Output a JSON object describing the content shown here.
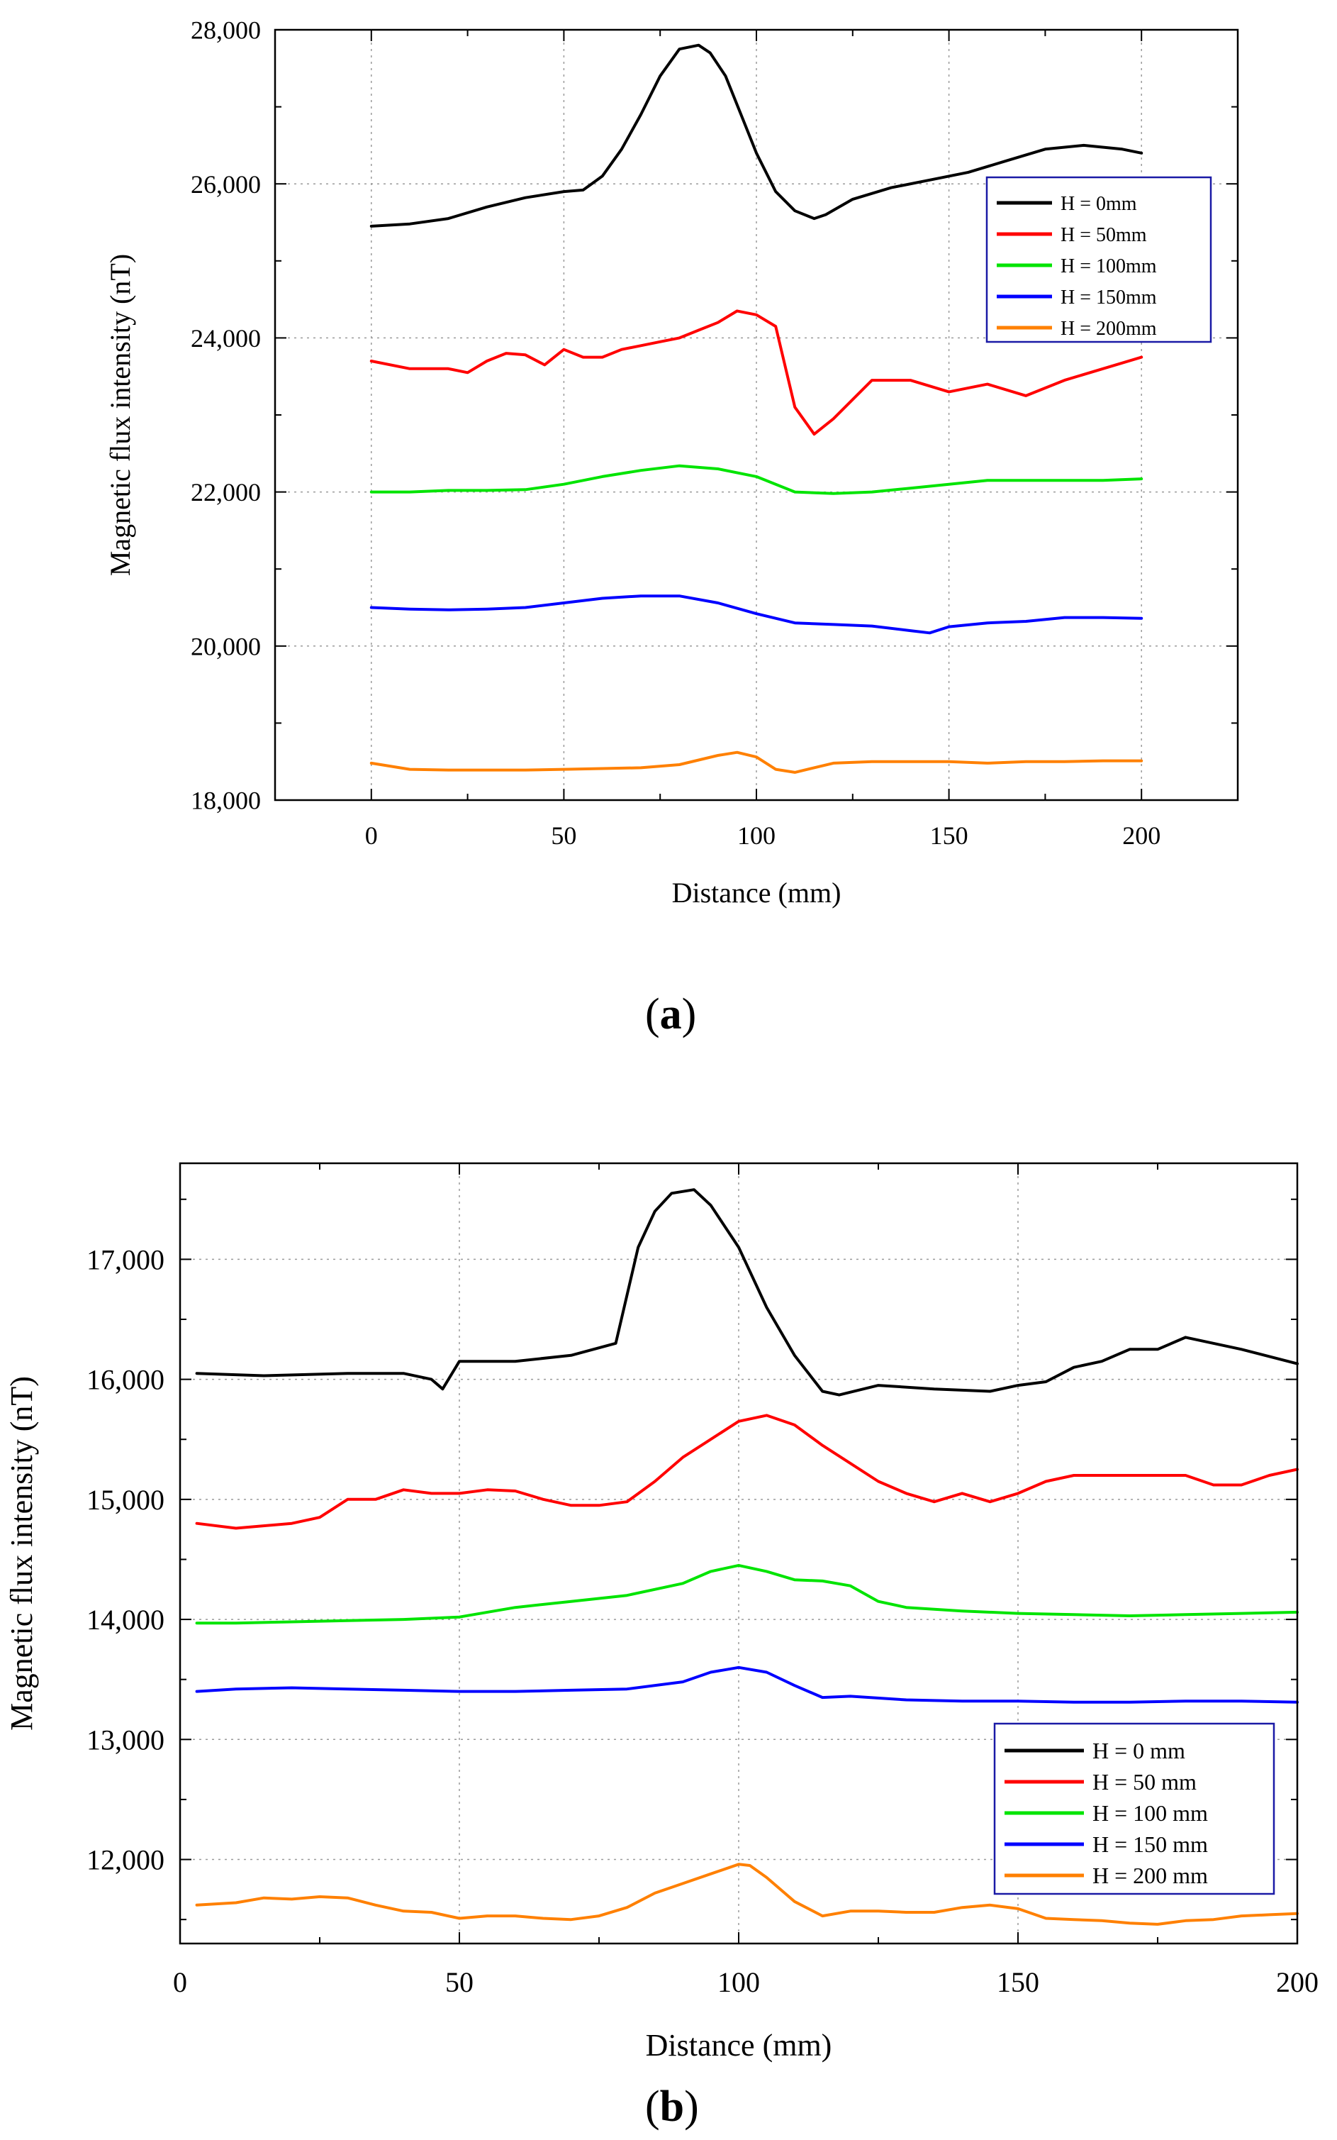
{
  "chart_data": [
    {
      "type": "line",
      "panel_label": "a",
      "xlabel": "Distance (mm)",
      "ylabel": "Magnetic flux intensity (nT)",
      "xlim": [
        -25,
        225
      ],
      "ylim": [
        18000,
        28000
      ],
      "xticks": [
        0,
        50,
        100,
        150,
        200
      ],
      "yticks": [
        18000,
        20000,
        22000,
        24000,
        26000,
        28000
      ],
      "xtick_labels": [
        "0",
        "50",
        "100",
        "150",
        "200"
      ],
      "ytick_labels": [
        "18,000",
        "20,000",
        "22,000",
        "24,000",
        "26,000",
        "28,000"
      ],
      "grid": true,
      "legend_position": "top-right",
      "series": [
        {
          "name": "H = 0mm",
          "color": "#000000",
          "x": [
            0,
            10,
            20,
            30,
            40,
            50,
            55,
            60,
            65,
            70,
            75,
            80,
            85,
            88,
            92,
            96,
            100,
            105,
            110,
            115,
            118,
            125,
            135,
            145,
            155,
            165,
            175,
            185,
            195,
            200
          ],
          "y": [
            25450,
            25480,
            25550,
            25700,
            25820,
            25900,
            25920,
            26100,
            26450,
            26900,
            27400,
            27750,
            27800,
            27700,
            27400,
            26900,
            26400,
            25900,
            25650,
            25550,
            25600,
            25800,
            25950,
            26050,
            26150,
            26300,
            26450,
            26500,
            26450,
            26400
          ]
        },
        {
          "name": "H = 50mm",
          "color": "#ff0000",
          "x": [
            0,
            10,
            20,
            25,
            30,
            35,
            40,
            45,
            50,
            55,
            60,
            65,
            70,
            75,
            80,
            85,
            90,
            95,
            100,
            105,
            110,
            115,
            120,
            130,
            140,
            150,
            160,
            170,
            180,
            190,
            200
          ],
          "y": [
            23700,
            23600,
            23600,
            23550,
            23700,
            23800,
            23780,
            23650,
            23850,
            23750,
            23750,
            23850,
            23900,
            23950,
            24000,
            24100,
            24200,
            24350,
            24300,
            24150,
            23100,
            22750,
            22950,
            23450,
            23450,
            23300,
            23400,
            23250,
            23450,
            23600,
            23750
          ]
        },
        {
          "name": "H = 100mm",
          "color": "#00e400",
          "x": [
            0,
            10,
            20,
            30,
            40,
            50,
            60,
            70,
            80,
            90,
            100,
            110,
            120,
            130,
            140,
            150,
            160,
            170,
            180,
            190,
            200
          ],
          "y": [
            22000,
            22000,
            22020,
            22020,
            22030,
            22100,
            22200,
            22280,
            22340,
            22300,
            22200,
            22000,
            21980,
            22000,
            22050,
            22100,
            22150,
            22150,
            22150,
            22150,
            22170
          ]
        },
        {
          "name": "H = 150mm",
          "color": "#0000ff",
          "x": [
            0,
            10,
            20,
            30,
            40,
            50,
            60,
            70,
            80,
            90,
            100,
            110,
            120,
            130,
            140,
            145,
            150,
            160,
            170,
            180,
            190,
            200
          ],
          "y": [
            20500,
            20480,
            20470,
            20480,
            20500,
            20560,
            20620,
            20650,
            20650,
            20560,
            20420,
            20300,
            20280,
            20260,
            20200,
            20170,
            20250,
            20300,
            20320,
            20370,
            20370,
            20360
          ]
        },
        {
          "name": "H = 200mm",
          "color": "#ff8000",
          "x": [
            0,
            10,
            20,
            30,
            40,
            50,
            60,
            70,
            80,
            90,
            95,
            100,
            105,
            110,
            120,
            130,
            140,
            150,
            160,
            170,
            180,
            190,
            200
          ],
          "y": [
            18480,
            18400,
            18390,
            18390,
            18390,
            18400,
            18410,
            18420,
            18460,
            18580,
            18620,
            18560,
            18400,
            18360,
            18480,
            18500,
            18500,
            18500,
            18480,
            18500,
            18500,
            18510,
            18510
          ]
        }
      ]
    },
    {
      "type": "line",
      "panel_label": "b",
      "xlabel": "Distance (mm)",
      "ylabel": "Magnetic flux intensity (nT)",
      "xlim": [
        0,
        200
      ],
      "ylim": [
        11300,
        17800
      ],
      "xticks": [
        0,
        50,
        100,
        150,
        200
      ],
      "yticks": [
        12000,
        13000,
        14000,
        15000,
        16000,
        17000
      ],
      "xtick_labels": [
        "0",
        "50",
        "100",
        "150",
        "200"
      ],
      "ytick_labels": [
        "12,000",
        "13,000",
        "14,000",
        "15,000",
        "16,000",
        "17,000"
      ],
      "grid": true,
      "legend_position": "bottom-right",
      "series": [
        {
          "name": "H = 0 mm",
          "color": "#000000",
          "x": [
            3,
            15,
            30,
            40,
            45,
            47,
            50,
            60,
            70,
            78,
            80,
            82,
            85,
            88,
            92,
            95,
            100,
            105,
            110,
            115,
            118,
            125,
            135,
            145,
            150,
            155,
            160,
            165,
            170,
            175,
            180,
            190,
            200
          ],
          "y": [
            16050,
            16030,
            16050,
            16050,
            16000,
            15920,
            16150,
            16150,
            16200,
            16300,
            16700,
            17100,
            17400,
            17550,
            17580,
            17450,
            17100,
            16600,
            16200,
            15900,
            15870,
            15950,
            15920,
            15900,
            15950,
            15980,
            16100,
            16150,
            16250,
            16250,
            16350,
            16250,
            16130
          ]
        },
        {
          "name": "H = 50 mm",
          "color": "#ff0000",
          "x": [
            3,
            10,
            20,
            25,
            30,
            35,
            40,
            45,
            50,
            55,
            60,
            65,
            70,
            75,
            80,
            85,
            90,
            95,
            100,
            105,
            110,
            115,
            120,
            125,
            130,
            135,
            140,
            145,
            150,
            155,
            160,
            165,
            170,
            175,
            180,
            185,
            190,
            195,
            200
          ],
          "y": [
            14800,
            14760,
            14800,
            14850,
            15000,
            15000,
            15080,
            15050,
            15050,
            15080,
            15070,
            15000,
            14950,
            14950,
            14980,
            15150,
            15350,
            15500,
            15650,
            15700,
            15620,
            15450,
            15300,
            15150,
            15050,
            14980,
            15050,
            14980,
            15050,
            15150,
            15200,
            15200,
            15200,
            15200,
            15200,
            15120,
            15120,
            15200,
            15250
          ]
        },
        {
          "name": "H = 100 mm",
          "color": "#00e400",
          "x": [
            3,
            10,
            20,
            30,
            40,
            50,
            60,
            70,
            80,
            90,
            95,
            100,
            105,
            110,
            115,
            120,
            125,
            130,
            140,
            150,
            160,
            170,
            180,
            190,
            200
          ],
          "y": [
            13970,
            13970,
            13980,
            13990,
            14000,
            14020,
            14100,
            14150,
            14200,
            14300,
            14400,
            14450,
            14400,
            14330,
            14320,
            14280,
            14150,
            14100,
            14070,
            14050,
            14040,
            14030,
            14040,
            14050,
            14060
          ]
        },
        {
          "name": "H = 150 mm",
          "color": "#0000ff",
          "x": [
            3,
            10,
            20,
            30,
            40,
            50,
            60,
            70,
            80,
            90,
            95,
            100,
            105,
            110,
            115,
            120,
            130,
            140,
            150,
            160,
            170,
            180,
            190,
            200
          ],
          "y": [
            13400,
            13420,
            13430,
            13420,
            13410,
            13400,
            13400,
            13410,
            13420,
            13480,
            13560,
            13600,
            13560,
            13450,
            13350,
            13360,
            13330,
            13320,
            13320,
            13310,
            13310,
            13320,
            13320,
            13310
          ]
        },
        {
          "name": "H = 200 mm",
          "color": "#ff8000",
          "x": [
            3,
            10,
            15,
            20,
            25,
            30,
            35,
            40,
            45,
            50,
            55,
            60,
            65,
            70,
            75,
            80,
            85,
            90,
            95,
            100,
            102,
            105,
            110,
            115,
            120,
            125,
            130,
            135,
            140,
            145,
            150,
            155,
            160,
            165,
            170,
            175,
            180,
            185,
            190,
            195,
            200
          ],
          "y": [
            11620,
            11640,
            11680,
            11670,
            11690,
            11680,
            11620,
            11570,
            11560,
            11510,
            11530,
            11530,
            11510,
            11500,
            11530,
            11600,
            11720,
            11800,
            11880,
            11960,
            11950,
            11850,
            11650,
            11530,
            11570,
            11570,
            11560,
            11560,
            11600,
            11620,
            11590,
            11510,
            11500,
            11490,
            11470,
            11460,
            11490,
            11500,
            11530,
            11540,
            11550
          ]
        }
      ]
    }
  ]
}
